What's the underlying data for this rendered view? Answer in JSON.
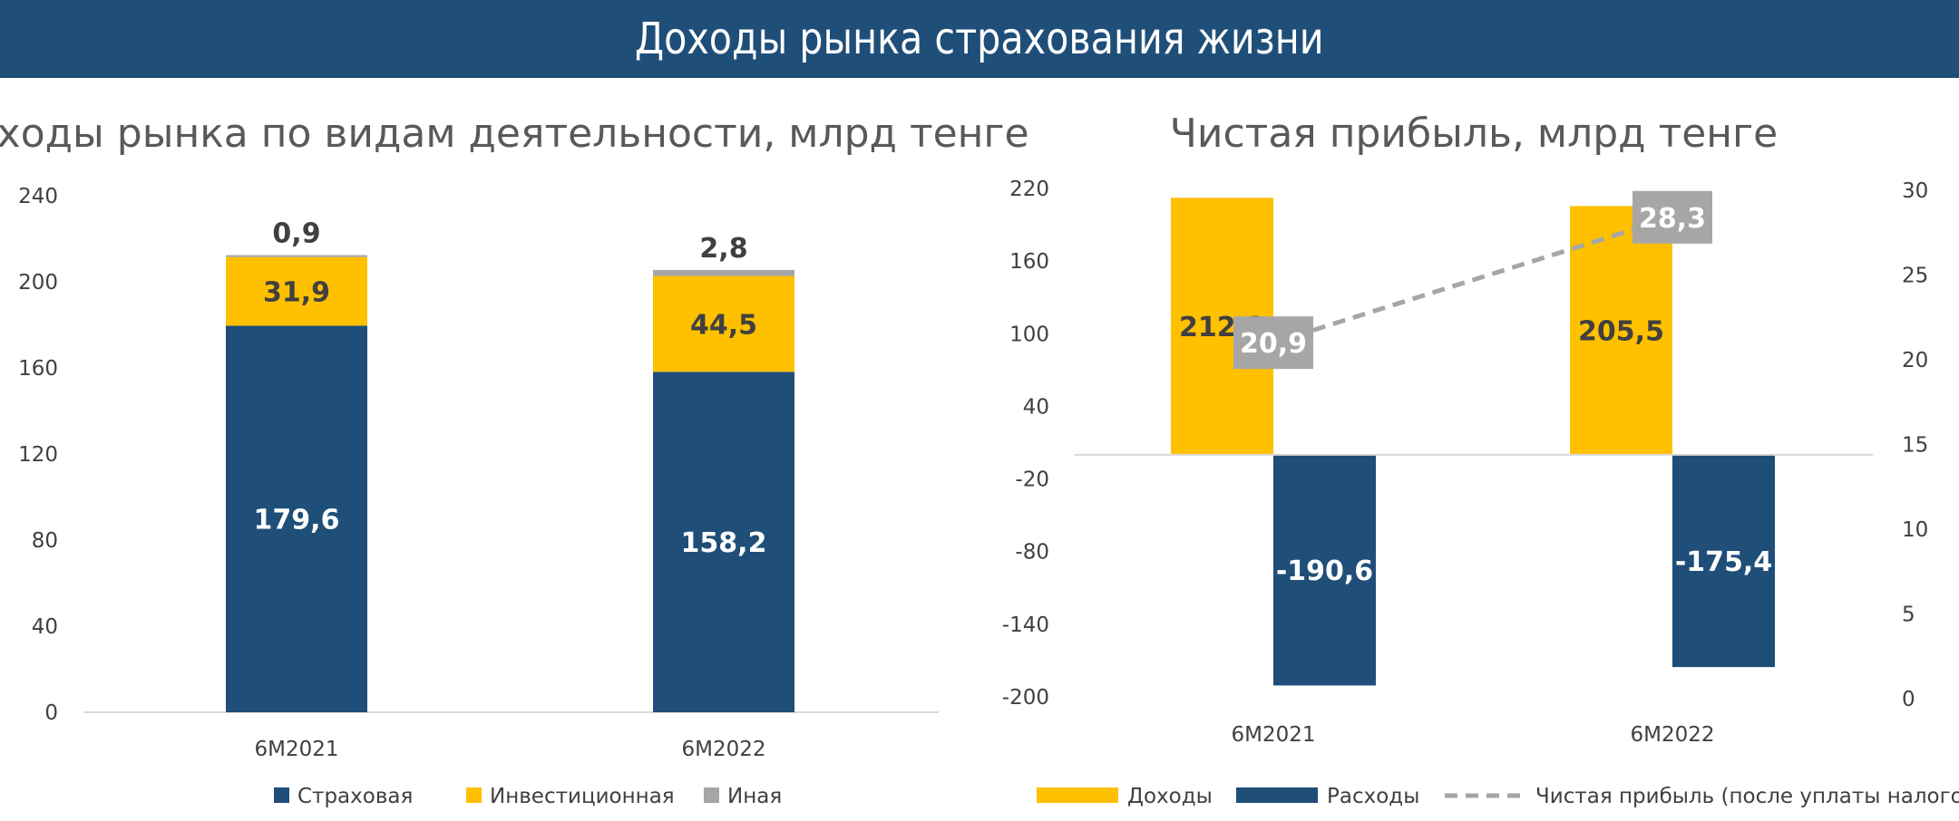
{
  "page_title": "Доходы рынка страхования жизни",
  "colors": {
    "banner": "#1f4e79",
    "navy": "#1f4e79",
    "yellow": "#ffc000",
    "gray": "#a6a6a6"
  },
  "chart_data": [
    {
      "type": "bar",
      "stacked": true,
      "title": "Доходы рынка по видам деятельности, млрд тенге",
      "categories": [
        "6М2021",
        "6М2022"
      ],
      "ylim": [
        0,
        240
      ],
      "yticks": [
        "0",
        "40",
        "80",
        "120",
        "160",
        "200",
        "240"
      ],
      "grid": false,
      "legend_position": "bottom",
      "series": [
        {
          "name": "Страховая",
          "values": [
            179.6,
            158.2
          ],
          "labels": [
            "179,6",
            "158,2"
          ],
          "color": "#1f4e79"
        },
        {
          "name": "Инвестиционная",
          "values": [
            31.9,
            44.5
          ],
          "labels": [
            "31,9",
            "44,5"
          ],
          "color": "#ffc000"
        },
        {
          "name": "Иная",
          "values": [
            0.9,
            2.8
          ],
          "labels": [
            "0,9",
            "2,8"
          ],
          "color": "#a6a6a6"
        }
      ]
    },
    {
      "type": "bar",
      "title": "Чистая прибыль, млрд тенге",
      "categories": [
        "6М2021",
        "6М2022"
      ],
      "ylim": [
        -200,
        220
      ],
      "yticks": [
        "220",
        "160",
        "100",
        "40",
        "-20",
        "-80",
        "-140",
        "-200"
      ],
      "y2lim": [
        0,
        30
      ],
      "y2ticks": [
        "30",
        "25",
        "20",
        "15",
        "10",
        "5",
        "0"
      ],
      "grid": false,
      "legend_position": "bottom",
      "series": [
        {
          "name": "Доходы",
          "type": "bar",
          "values": [
            212.3,
            205.5
          ],
          "labels": [
            "212,3",
            "205,5"
          ],
          "color": "#ffc000"
        },
        {
          "name": "Расходы",
          "type": "bar",
          "values": [
            -190.6,
            -175.4
          ],
          "labels": [
            "-190,6",
            "-175,4"
          ],
          "color": "#1f4e79"
        },
        {
          "name": "Чистая прибыль (после уплаты налогов) (R)",
          "type": "line",
          "axis": "right",
          "values": [
            20.9,
            28.3
          ],
          "labels": [
            "20,9",
            "28,3"
          ],
          "color": "#a6a6a6"
        }
      ]
    }
  ]
}
